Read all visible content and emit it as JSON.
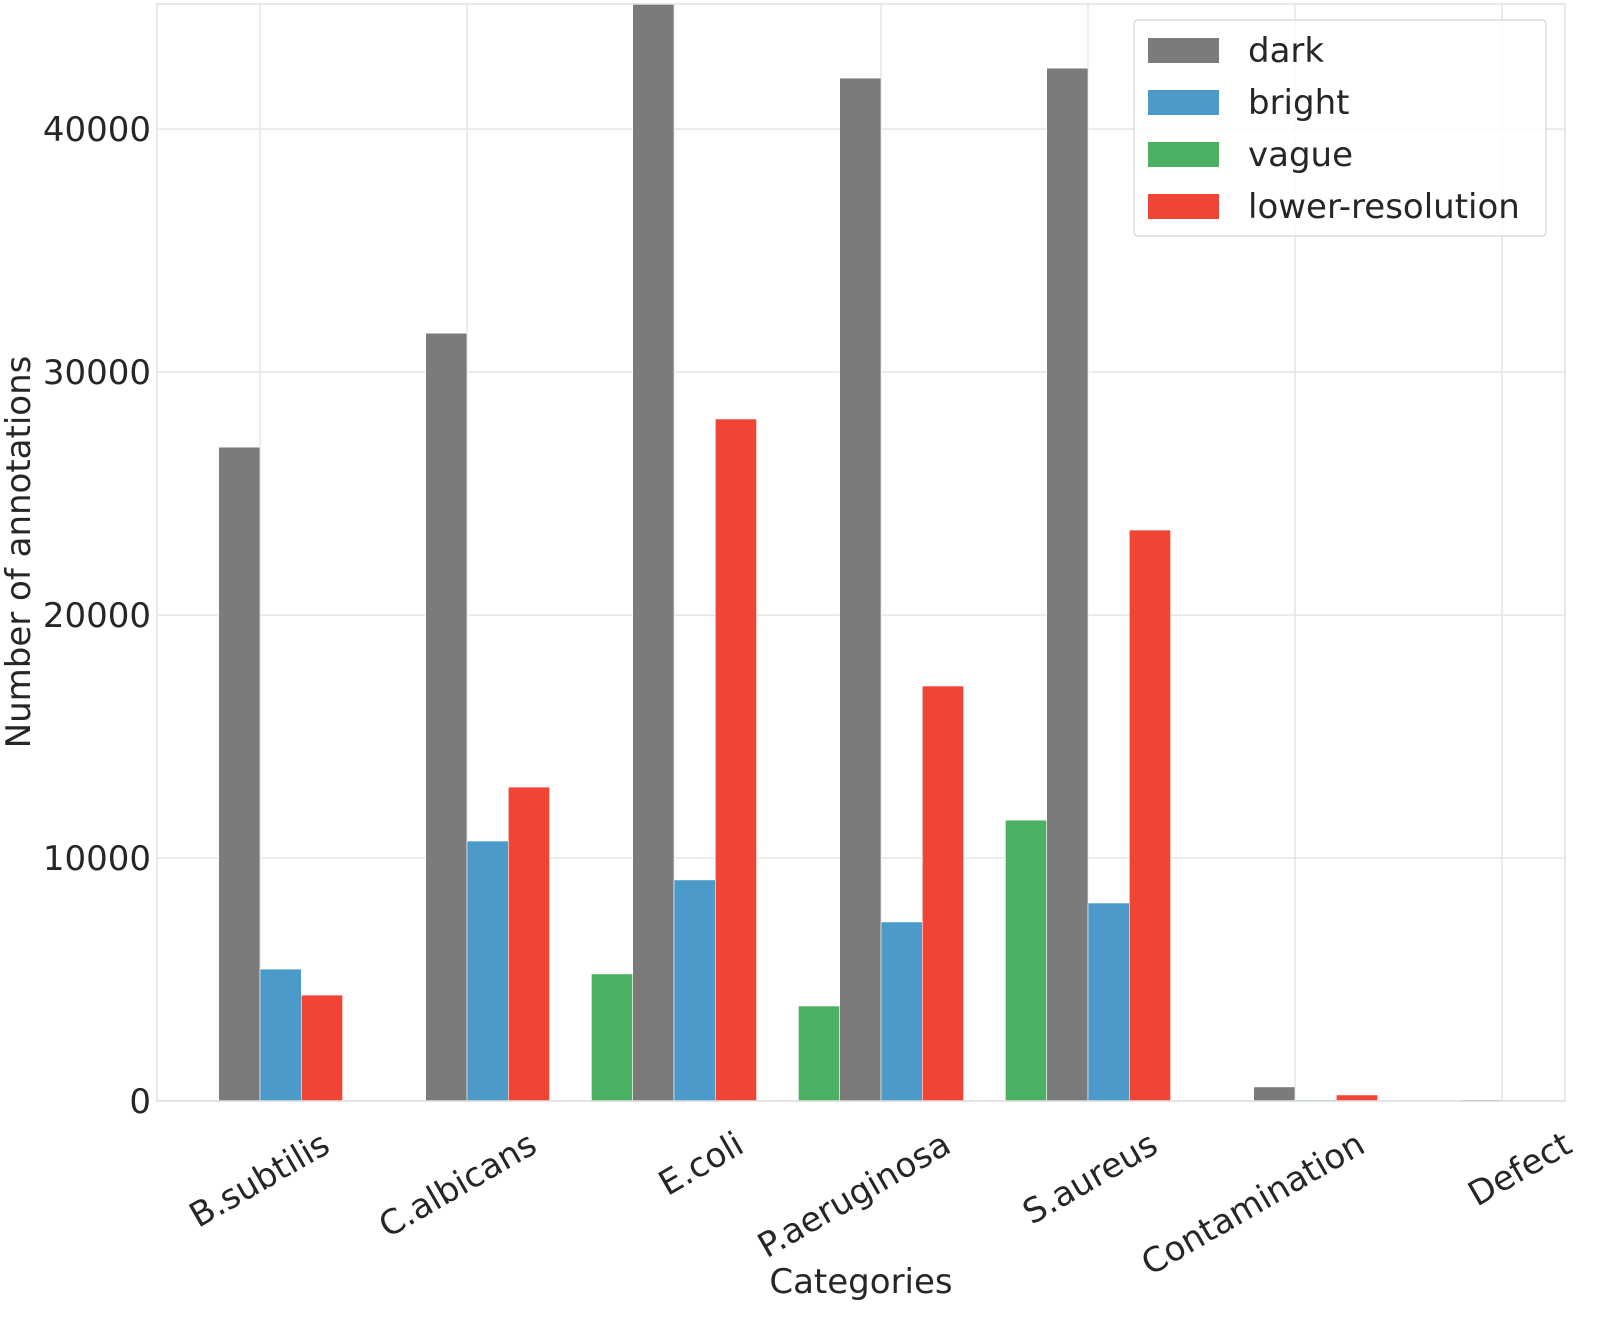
{
  "chart_data": {
    "type": "bar",
    "title": "",
    "xlabel": "Categories",
    "ylabel": "Number of annotations",
    "categories": [
      "B.subtilis",
      "C.albicans",
      "E.coli",
      "P.aeruginosa",
      "S.aureus",
      "Contamination",
      "Defect"
    ],
    "series": [
      {
        "name": "vague",
        "color": "#4bb062",
        "values": [
          0,
          0,
          5230,
          3910,
          11560,
          0,
          0
        ]
      },
      {
        "name": "dark",
        "color": "#7b7b7b",
        "values": [
          26910,
          31600,
          45200,
          42100,
          42510,
          580,
          50
        ]
      },
      {
        "name": "bright",
        "color": "#4b9aca",
        "values": [
          5430,
          10700,
          9100,
          7370,
          8150,
          50,
          0
        ]
      },
      {
        "name": "lower-resolution",
        "color": "#f04434",
        "values": [
          4360,
          12920,
          28070,
          17080,
          23500,
          250,
          0
        ]
      }
    ],
    "legend_order": [
      "dark",
      "bright",
      "vague",
      "lower-resolution"
    ],
    "ylim": [
      0,
      45150
    ],
    "yticks": [
      0,
      10000,
      20000,
      30000,
      40000
    ],
    "grid": true,
    "legend_placement": "top-right"
  }
}
